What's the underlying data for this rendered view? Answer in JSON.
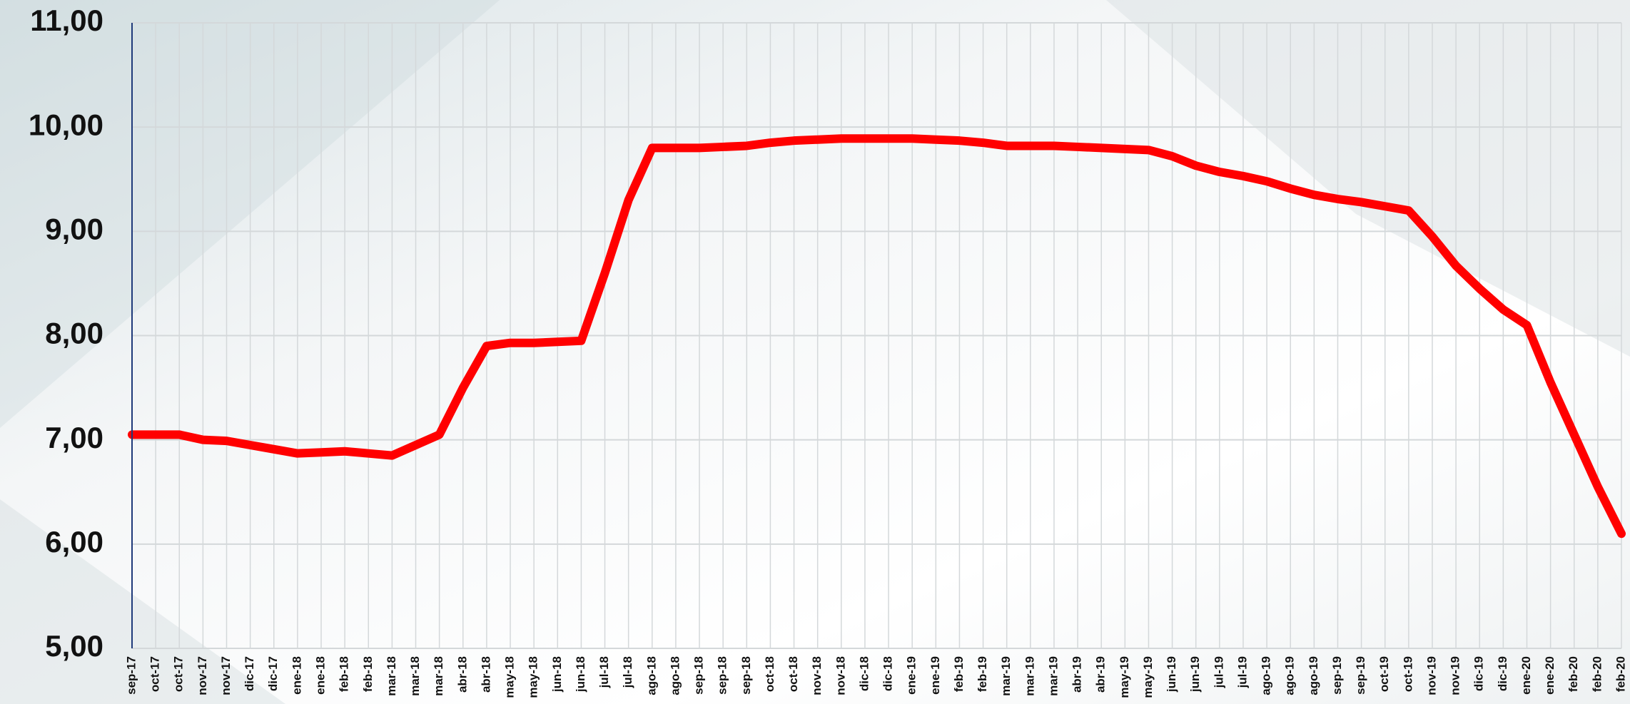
{
  "chart_data": {
    "type": "line",
    "categories": [
      "sep-17",
      "oct-17",
      "oct-17",
      "nov-17",
      "nov-17",
      "dic-17",
      "dic-17",
      "ene-18",
      "ene-18",
      "feb-18",
      "feb-18",
      "mar-18",
      "mar-18",
      "mar-18",
      "abr-18",
      "abr-18",
      "may-18",
      "may-18",
      "jun-18",
      "jun-18",
      "jul-18",
      "jul-18",
      "ago-18",
      "ago-18",
      "sep-18",
      "sep-18",
      "sep-18",
      "oct-18",
      "oct-18",
      "nov-18",
      "nov-18",
      "dic-18",
      "dic-18",
      "ene-19",
      "ene-19",
      "feb-19",
      "feb-19",
      "mar-19",
      "mar-19",
      "mar-19",
      "abr-19",
      "abr-19",
      "may-19",
      "may-19",
      "jun-19",
      "jun-19",
      "jul-19",
      "jul-19",
      "ago-19",
      "ago-19",
      "ago-19",
      "sep-19",
      "sep-19",
      "oct-19",
      "oct-19",
      "nov-19",
      "nov-19",
      "dic-19",
      "dic-19",
      "ene-20",
      "ene-20",
      "feb-20",
      "feb-20",
      "feb-20"
    ],
    "values": [
      7.05,
      7.05,
      7.05,
      7.0,
      6.99,
      6.95,
      6.91,
      6.87,
      6.88,
      6.89,
      6.87,
      6.85,
      6.95,
      7.05,
      7.5,
      7.9,
      7.93,
      7.93,
      7.94,
      7.95,
      8.6,
      9.3,
      9.8,
      9.8,
      9.8,
      9.81,
      9.82,
      9.85,
      9.87,
      9.88,
      9.89,
      9.89,
      9.89,
      9.89,
      9.88,
      9.87,
      9.85,
      9.82,
      9.82,
      9.82,
      9.81,
      9.8,
      9.79,
      9.78,
      9.72,
      9.63,
      9.57,
      9.53,
      9.48,
      9.41,
      9.35,
      9.31,
      9.28,
      9.24,
      9.2,
      8.95,
      8.67,
      8.45,
      8.25,
      8.1,
      7.55,
      7.05,
      6.55,
      6.1
    ],
    "color": "#ff0000",
    "ylim": [
      5,
      11
    ],
    "yticks": [
      {
        "value": 5,
        "label": "5,00"
      },
      {
        "value": 6,
        "label": "6,00"
      },
      {
        "value": 7,
        "label": "7,00"
      },
      {
        "value": 8,
        "label": "8,00"
      },
      {
        "value": 9,
        "label": "9,00"
      },
      {
        "value": 10,
        "label": "10,00"
      },
      {
        "value": 11,
        "label": "11,00"
      }
    ],
    "grid": true
  }
}
